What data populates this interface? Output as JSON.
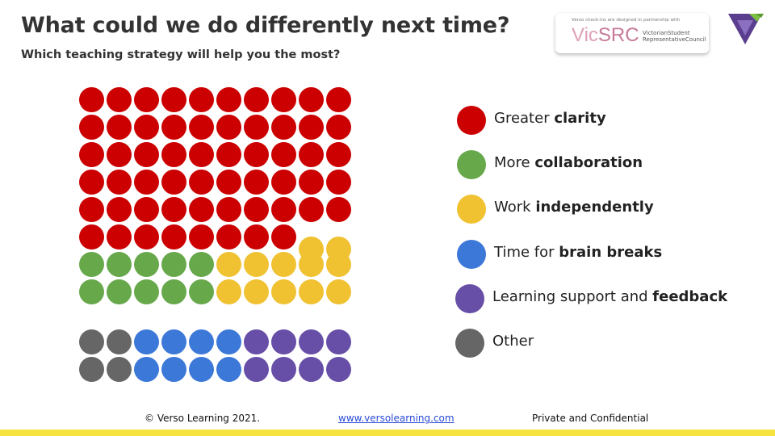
{
  "header": {
    "title": "What could we do differently next time?",
    "subtitle": "Which teaching strategy will help you the most?"
  },
  "partner": {
    "tagline": "Verso check-ins are designed in partnership with",
    "mark_vic": "Vic",
    "mark_src": "SRC",
    "name_line1": "VictorianStudent",
    "name_line2": "RepresentativeCouncil"
  },
  "colors": {
    "clarity": "#cc0000",
    "collaboration": "#67a84b",
    "independent": "#f0c232",
    "brain_breaks": "#3c78d8",
    "feedback": "#674ea7",
    "other": "#666666"
  },
  "legend": [
    {
      "key": "clarity",
      "prefix": "Greater ",
      "bold": "clarity"
    },
    {
      "key": "collaboration",
      "prefix": "More ",
      "bold": "collaboration"
    },
    {
      "key": "independent",
      "prefix": "Work ",
      "bold": "independently"
    },
    {
      "key": "brain_breaks",
      "prefix": "Time for ",
      "bold": "brain breaks"
    },
    {
      "key": "feedback",
      "prefix": "Learning support and ",
      "bold": "feedback"
    },
    {
      "key": "other",
      "prefix": "Other",
      "bold": ""
    }
  ],
  "dot_grid": {
    "total": 100,
    "rows": [
      [
        "clarity",
        "clarity",
        "clarity",
        "clarity",
        "clarity",
        "clarity",
        "clarity",
        "clarity",
        "clarity",
        "clarity"
      ],
      [
        "clarity",
        "clarity",
        "clarity",
        "clarity",
        "clarity",
        "clarity",
        "clarity",
        "clarity",
        "clarity",
        "clarity"
      ],
      [
        "clarity",
        "clarity",
        "clarity",
        "clarity",
        "clarity",
        "clarity",
        "clarity",
        "clarity",
        "clarity",
        "clarity"
      ],
      [
        "clarity",
        "clarity",
        "clarity",
        "clarity",
        "clarity",
        "clarity",
        "clarity",
        "clarity",
        "clarity",
        "clarity"
      ],
      [
        "clarity",
        "clarity",
        "clarity",
        "clarity",
        "clarity",
        "clarity",
        "clarity",
        "clarity",
        "clarity",
        "clarity"
      ],
      [
        "clarity",
        "clarity",
        "clarity",
        "clarity",
        "clarity",
        "clarity",
        "clarity",
        "clarity"
      ],
      [
        "collaboration",
        "collaboration",
        "collaboration",
        "collaboration",
        "collaboration",
        "independent",
        "independent",
        "independent",
        "independent",
        "independent"
      ],
      [
        "collaboration",
        "collaboration",
        "collaboration",
        "collaboration",
        "collaboration",
        "independent",
        "independent",
        "independent",
        "independent",
        "independent"
      ],
      [
        "other",
        "other",
        "brain_breaks",
        "brain_breaks",
        "brain_breaks",
        "brain_breaks",
        "feedback",
        "feedback",
        "feedback",
        "feedback"
      ],
      [
        "other",
        "other",
        "brain_breaks",
        "brain_breaks",
        "brain_breaks",
        "brain_breaks",
        "feedback",
        "feedback",
        "feedback",
        "feedback"
      ]
    ],
    "extra_half_row": [
      "independent",
      "independent"
    ]
  },
  "footer": {
    "copyright": "© Verso Learning 2021.",
    "link": "www.versolearning.com",
    "notice": "Private and Confidential"
  }
}
